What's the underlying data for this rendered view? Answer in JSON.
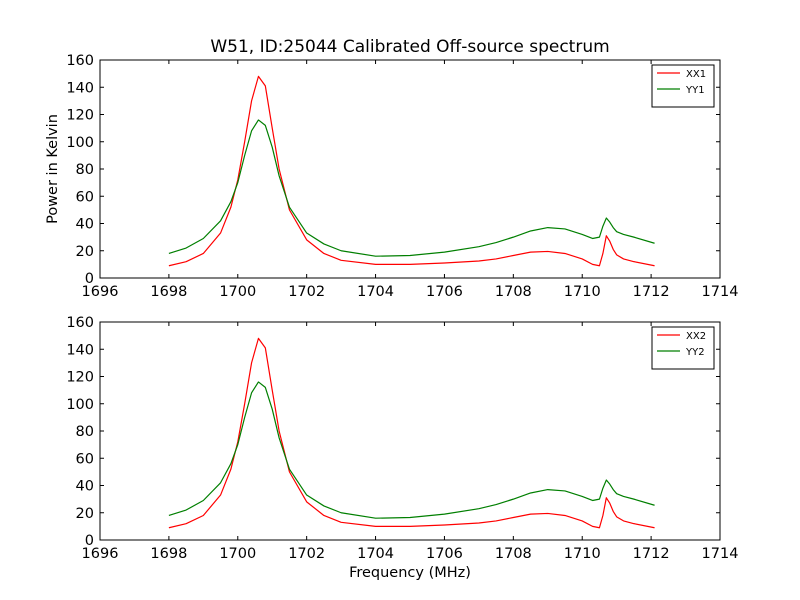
{
  "figure": {
    "title": "W51, ID:25044 Calibrated Off-source spectrum"
  },
  "chart_data": [
    {
      "type": "line",
      "title": "W51, ID:25044 Calibrated Off-source spectrum",
      "xlabel": "",
      "ylabel": "Power in Kelvin",
      "xlim": [
        1696,
        1714
      ],
      "ylim": [
        0,
        160
      ],
      "xticks": [
        1696,
        1698,
        1700,
        1702,
        1704,
        1706,
        1708,
        1710,
        1712,
        1714
      ],
      "yticks": [
        0,
        20,
        40,
        60,
        80,
        100,
        120,
        140,
        160
      ],
      "grid": false,
      "legend": "top-right",
      "series": [
        {
          "name": "XX1",
          "color": "#ff0000",
          "x": [
            1698.0,
            1698.5,
            1699.0,
            1699.5,
            1699.8,
            1700.0,
            1700.2,
            1700.4,
            1700.6,
            1700.8,
            1701.0,
            1701.2,
            1701.5,
            1702.0,
            1702.5,
            1703.0,
            1704.0,
            1705.0,
            1706.0,
            1707.0,
            1707.5,
            1708.0,
            1708.5,
            1709.0,
            1709.5,
            1710.0,
            1710.3,
            1710.5,
            1710.6,
            1710.7,
            1710.8,
            1710.9,
            1711.0,
            1711.2,
            1711.5,
            1712.1
          ],
          "y": [
            9,
            12,
            18,
            33,
            52,
            72,
            100,
            130,
            148,
            141,
            110,
            80,
            50,
            28,
            18,
            13,
            10,
            10,
            11,
            12.5,
            14,
            16.5,
            19,
            19.5,
            18,
            14,
            10,
            9,
            18,
            31,
            27,
            21,
            17,
            14,
            12,
            9
          ]
        },
        {
          "name": "YY1",
          "color": "#007f00",
          "x": [
            1698.0,
            1698.5,
            1699.0,
            1699.5,
            1699.8,
            1700.0,
            1700.2,
            1700.4,
            1700.6,
            1700.8,
            1701.0,
            1701.2,
            1701.5,
            1702.0,
            1702.5,
            1703.0,
            1704.0,
            1705.0,
            1706.0,
            1707.0,
            1707.5,
            1708.0,
            1708.5,
            1709.0,
            1709.5,
            1710.0,
            1710.3,
            1710.5,
            1710.6,
            1710.7,
            1710.8,
            1710.9,
            1711.0,
            1711.2,
            1711.5,
            1712.1
          ],
          "y": [
            18,
            22,
            29,
            42,
            56,
            70,
            90,
            108,
            116,
            112,
            96,
            75,
            52,
            33,
            25,
            20,
            16,
            16.5,
            19,
            23,
            26,
            30,
            34.5,
            37,
            36,
            32,
            29,
            30,
            38,
            44,
            41,
            37,
            34,
            32,
            30,
            25.5
          ]
        }
      ]
    },
    {
      "type": "line",
      "title": "",
      "xlabel": "Frequency (MHz)",
      "ylabel": "",
      "xlim": [
        1696,
        1714
      ],
      "ylim": [
        0,
        160
      ],
      "xticks": [
        1696,
        1698,
        1700,
        1702,
        1704,
        1706,
        1708,
        1710,
        1712,
        1714
      ],
      "yticks": [
        0,
        20,
        40,
        60,
        80,
        100,
        120,
        140,
        160
      ],
      "grid": false,
      "legend": "top-right",
      "series": [
        {
          "name": "XX2",
          "color": "#ff0000",
          "x": [
            1698.0,
            1698.5,
            1699.0,
            1699.5,
            1699.8,
            1700.0,
            1700.2,
            1700.4,
            1700.6,
            1700.8,
            1701.0,
            1701.2,
            1701.5,
            1702.0,
            1702.5,
            1703.0,
            1704.0,
            1705.0,
            1706.0,
            1707.0,
            1707.5,
            1708.0,
            1708.5,
            1709.0,
            1709.5,
            1710.0,
            1710.3,
            1710.5,
            1710.6,
            1710.7,
            1710.8,
            1710.9,
            1711.0,
            1711.2,
            1711.5,
            1712.1
          ],
          "y": [
            9,
            12,
            18,
            33,
            52,
            72,
            100,
            130,
            148,
            141,
            110,
            80,
            50,
            28,
            18,
            13,
            10,
            10,
            11,
            12.5,
            14,
            16.5,
            19,
            19.5,
            18,
            14,
            10,
            9,
            18,
            31,
            27,
            21,
            17,
            14,
            12,
            9
          ]
        },
        {
          "name": "YY2",
          "color": "#007f00",
          "x": [
            1698.0,
            1698.5,
            1699.0,
            1699.5,
            1699.8,
            1700.0,
            1700.2,
            1700.4,
            1700.6,
            1700.8,
            1701.0,
            1701.2,
            1701.5,
            1702.0,
            1702.5,
            1703.0,
            1704.0,
            1705.0,
            1706.0,
            1707.0,
            1707.5,
            1708.0,
            1708.5,
            1709.0,
            1709.5,
            1710.0,
            1710.3,
            1710.5,
            1710.6,
            1710.7,
            1710.8,
            1710.9,
            1711.0,
            1711.2,
            1711.5,
            1712.1
          ],
          "y": [
            18,
            22,
            29,
            42,
            56,
            70,
            90,
            108,
            116,
            112,
            96,
            75,
            52,
            33,
            25,
            20,
            16,
            16.5,
            19,
            23,
            26,
            30,
            34.5,
            37,
            36,
            32,
            29,
            30,
            38,
            44,
            41,
            37,
            34,
            32,
            30,
            25.5
          ]
        }
      ]
    }
  ]
}
